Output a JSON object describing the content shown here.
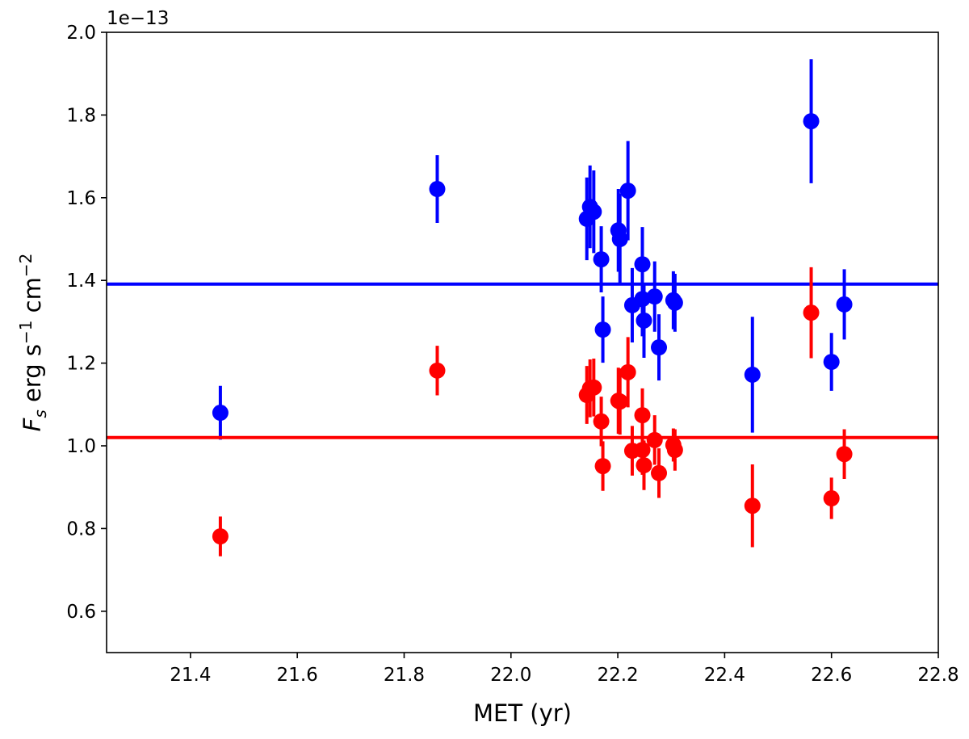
{
  "chart_data": {
    "type": "scatter",
    "title": "",
    "xlabel": "MET (yr)",
    "ylabel": {
      "main": "F",
      "sub": "s",
      "rest1": " erg s",
      "sup1": "−1",
      "rest2": " cm",
      "sup2": "−2"
    },
    "y_offset_label": "1e−13",
    "xlim": [
      21.243,
      22.8
    ],
    "ylim": [
      0.5,
      2.0
    ],
    "xticks": [
      21.4,
      21.6,
      21.8,
      22.0,
      22.2,
      22.4,
      22.6,
      22.8
    ],
    "xtick_labels": [
      "21.4",
      "21.6",
      "21.8",
      "22.0",
      "22.2",
      "22.4",
      "22.6",
      "22.8"
    ],
    "yticks": [
      0.6,
      0.8,
      1.0,
      1.2,
      1.4,
      1.6,
      1.8,
      2.0
    ],
    "ytick_labels": [
      "0.6",
      "0.8",
      "1.0",
      "1.2",
      "1.4",
      "1.6",
      "1.8",
      "2.0"
    ],
    "grid": false,
    "x": [
      21.456,
      21.862,
      22.142,
      22.148,
      22.155,
      22.169,
      22.172,
      22.201,
      22.204,
      22.219,
      22.227,
      22.246,
      22.246,
      22.249,
      22.269,
      22.277,
      22.304,
      22.307,
      22.452,
      22.562,
      22.6,
      22.624
    ],
    "series": [
      {
        "color": "#0000ff",
        "values": [
          1.08,
          1.621,
          1.549,
          1.578,
          1.566,
          1.451,
          1.281,
          1.521,
          1.5,
          1.617,
          1.34,
          1.439,
          1.355,
          1.303,
          1.361,
          1.238,
          1.352,
          1.346,
          1.172,
          1.785,
          1.203,
          1.342
        ],
        "errors": [
          0.065,
          0.082,
          0.1,
          0.1,
          0.1,
          0.08,
          0.08,
          0.1,
          0.11,
          0.12,
          0.09,
          0.09,
          0.09,
          0.09,
          0.085,
          0.08,
          0.07,
          0.07,
          0.14,
          0.15,
          0.07,
          0.085
        ],
        "mean_line": 1.391
      },
      {
        "color": "#ff0000",
        "values": [
          0.781,
          1.182,
          1.123,
          1.139,
          1.141,
          1.059,
          0.951,
          1.109,
          1.107,
          1.178,
          0.988,
          1.074,
          0.99,
          0.953,
          1.014,
          0.934,
          1.002,
          0.99,
          0.855,
          1.322,
          0.873,
          0.98
        ],
        "errors": [
          0.048,
          0.06,
          0.07,
          0.07,
          0.07,
          0.06,
          0.06,
          0.08,
          0.08,
          0.085,
          0.06,
          0.065,
          0.06,
          0.06,
          0.06,
          0.06,
          0.04,
          0.05,
          0.1,
          0.11,
          0.05,
          0.06
        ],
        "mean_line": 1.02
      }
    ]
  }
}
